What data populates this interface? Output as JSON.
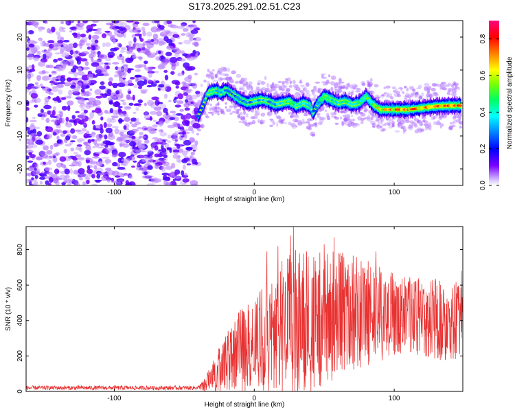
{
  "title": "S173.2025.291.02.51.C23",
  "chart_data": [
    {
      "type": "heatmap",
      "panel": "spectrogram",
      "xlabel": "Height of straight line (km)",
      "ylabel": "Frequency (Hz)",
      "xlim": [
        -163,
        149
      ],
      "ylim": [
        -25,
        25
      ],
      "x_ticks": [
        -100,
        0,
        100
      ],
      "y_ticks": [
        20,
        10,
        0,
        -10,
        -20
      ],
      "x_tick_labels": [
        "-100",
        "0",
        "100"
      ],
      "y_tick_labels": [
        "20",
        "10",
        "0",
        "-10",
        "-20"
      ],
      "noise_region_x": [
        -163,
        -40
      ],
      "signal_ridge": {
        "x": [
          -40,
          -36,
          -33,
          -30,
          -27,
          -24,
          -20,
          -15,
          -10,
          -5,
          0,
          5,
          10,
          15,
          20,
          25,
          30,
          35,
          40,
          42,
          45,
          50,
          55,
          60,
          65,
          70,
          75,
          80,
          85,
          90,
          95,
          100,
          110,
          120,
          130,
          140,
          148
        ],
        "frequency_hz": [
          -4,
          0,
          3,
          3.5,
          3.8,
          3,
          4,
          2.5,
          1,
          0,
          0.5,
          1,
          0.5,
          -0.5,
          0,
          0.5,
          -1,
          0,
          -1,
          -3,
          -0.5,
          2,
          1,
          0,
          0.5,
          -0.5,
          0,
          2,
          -0.5,
          -2,
          -2,
          -2,
          -2,
          -1.5,
          -1,
          -0.8,
          -0.8
        ],
        "amplitude": [
          0.3,
          0.35,
          0.4,
          0.5,
          0.45,
          0.4,
          0.4,
          0.35,
          0.4,
          0.35,
          0.4,
          0.45,
          0.4,
          0.4,
          0.55,
          0.5,
          0.45,
          0.4,
          0.45,
          0.35,
          0.45,
          0.5,
          0.5,
          0.45,
          0.5,
          0.45,
          0.5,
          0.55,
          0.55,
          0.75,
          0.8,
          0.8,
          0.85,
          0.8,
          0.8,
          0.85,
          0.85
        ]
      },
      "colorbar": {
        "label": "Normalized spectral amplitude",
        "range": [
          0.0,
          0.9
        ],
        "ticks": [
          0.0,
          0.2,
          0.4,
          0.6,
          0.8
        ],
        "tick_labels": [
          "0.0",
          "0.2",
          "0.4",
          "0.6",
          "0.8"
        ]
      }
    },
    {
      "type": "line",
      "panel": "snr",
      "xlabel": "Height of straight line (km)",
      "ylabel": "SNR (10 * v/v)",
      "xlim": [
        -163,
        149
      ],
      "ylim": [
        0,
        930
      ],
      "x_ticks": [
        -100,
        0,
        100
      ],
      "y_ticks": [
        0,
        200,
        400,
        600,
        800
      ],
      "x_tick_labels": [
        "-100",
        "0",
        "100"
      ],
      "y_tick_labels": [
        "0",
        "200",
        "400",
        "600",
        "800"
      ],
      "color": "#e83232",
      "envelope": {
        "x": [
          -163,
          -40,
          -35,
          -30,
          -25,
          -20,
          -10,
          0,
          10,
          20,
          30,
          40,
          50,
          60,
          70,
          80,
          90,
          100,
          110,
          120,
          130,
          140,
          149
        ],
        "mean": [
          20,
          20,
          40,
          80,
          130,
          180,
          230,
          260,
          320,
          360,
          390,
          410,
          420,
          430,
          440,
          440,
          430,
          430,
          430,
          420,
          410,
          400,
          400
        ],
        "spread": [
          12,
          12,
          40,
          90,
          130,
          170,
          230,
          260,
          320,
          380,
          420,
          420,
          390,
          360,
          330,
          310,
          270,
          240,
          220,
          220,
          230,
          230,
          230
        ]
      },
      "peaks": [
        {
          "x": 28,
          "y": 930
        },
        {
          "x": 26,
          "y": 880
        },
        {
          "x": 17,
          "y": 820
        },
        {
          "x": 9,
          "y": 790
        },
        {
          "x": 50,
          "y": 830
        },
        {
          "x": 57,
          "y": 870
        },
        {
          "x": 87,
          "y": 790
        },
        {
          "x": 148,
          "y": 680
        }
      ]
    }
  ]
}
